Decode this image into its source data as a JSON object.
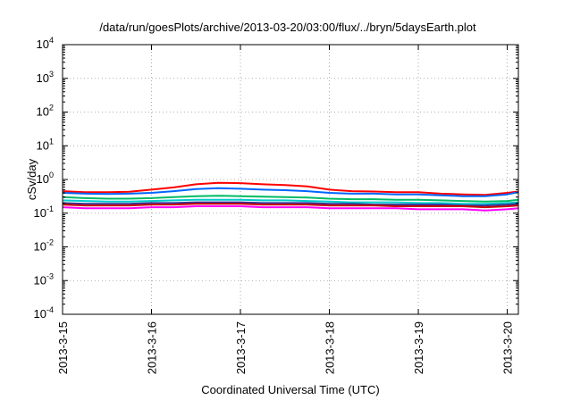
{
  "chart_data": {
    "type": "line",
    "title": "/data/run/goesPlots/archive/2013-03-20/03:00/flux/../bryn/5daysEarth.plot",
    "xlabel": "Coordinated Universal Time (UTC)",
    "ylabel": "cSv/day",
    "yscale": "log",
    "ylim": [
      0.0001,
      10000
    ],
    "xlim": [
      "2013-03-15 00:00",
      "2013-03-20 03:00"
    ],
    "grid": true,
    "yticks": [
      {
        "base": "10",
        "exp": "-4",
        "value": 0.0001
      },
      {
        "base": "10",
        "exp": "-3",
        "value": 0.001
      },
      {
        "base": "10",
        "exp": "-2",
        "value": 0.01
      },
      {
        "base": "10",
        "exp": "-1",
        "value": 0.1
      },
      {
        "base": "10",
        "exp": "0",
        "value": 1
      },
      {
        "base": "10",
        "exp": "1",
        "value": 10
      },
      {
        "base": "10",
        "exp": "2",
        "value": 100
      },
      {
        "base": "10",
        "exp": "3",
        "value": 1000
      },
      {
        "base": "10",
        "exp": "4",
        "value": 10000
      }
    ],
    "xticks": [
      {
        "label": "2013-3-15",
        "value": "2013-03-15 00:00"
      },
      {
        "label": "2013-3-16",
        "value": "2013-03-16 00:00"
      },
      {
        "label": "2013-3-17",
        "value": "2013-03-17 00:00"
      },
      {
        "label": "2013-3-18",
        "value": "2013-03-18 00:00"
      },
      {
        "label": "2013-3-19",
        "value": "2013-03-19 00:00"
      },
      {
        "label": "2013-3-20",
        "value": "2013-03-20 00:00"
      }
    ],
    "x": [
      "2013-03-15 00:00",
      "2013-03-15 06:00",
      "2013-03-15 12:00",
      "2013-03-15 18:00",
      "2013-03-16 00:00",
      "2013-03-16 06:00",
      "2013-03-16 12:00",
      "2013-03-16 18:00",
      "2013-03-17 00:00",
      "2013-03-17 06:00",
      "2013-03-17 12:00",
      "2013-03-17 18:00",
      "2013-03-18 00:00",
      "2013-03-18 06:00",
      "2013-03-18 12:00",
      "2013-03-18 18:00",
      "2013-03-19 00:00",
      "2013-03-19 06:00",
      "2013-03-19 12:00",
      "2013-03-19 18:00",
      "2013-03-20 00:00",
      "2013-03-20 03:00"
    ],
    "series": [
      {
        "color": "#ff0000",
        "values": [
          0.45,
          0.42,
          0.42,
          0.43,
          0.5,
          0.58,
          0.72,
          0.8,
          0.78,
          0.72,
          0.68,
          0.62,
          0.5,
          0.45,
          0.44,
          0.42,
          0.42,
          0.38,
          0.36,
          0.35,
          0.4,
          0.44
        ]
      },
      {
        "color": "#0066ff",
        "values": [
          0.4,
          0.38,
          0.37,
          0.38,
          0.4,
          0.45,
          0.52,
          0.55,
          0.53,
          0.5,
          0.48,
          0.45,
          0.4,
          0.38,
          0.38,
          0.36,
          0.36,
          0.34,
          0.32,
          0.32,
          0.36,
          0.42
        ]
      },
      {
        "color": "#00bb66",
        "values": [
          0.3,
          0.28,
          0.27,
          0.27,
          0.28,
          0.3,
          0.32,
          0.33,
          0.32,
          0.31,
          0.3,
          0.29,
          0.27,
          0.26,
          0.26,
          0.25,
          0.25,
          0.24,
          0.23,
          0.22,
          0.23,
          0.25
        ]
      },
      {
        "color": "#00cccc",
        "values": [
          0.24,
          0.23,
          0.22,
          0.22,
          0.23,
          0.24,
          0.25,
          0.25,
          0.25,
          0.24,
          0.24,
          0.23,
          0.22,
          0.21,
          0.21,
          0.21,
          0.2,
          0.2,
          0.19,
          0.19,
          0.2,
          0.21
        ]
      },
      {
        "color": "#333399",
        "values": [
          0.2,
          0.19,
          0.19,
          0.19,
          0.2,
          0.2,
          0.21,
          0.21,
          0.21,
          0.2,
          0.2,
          0.2,
          0.19,
          0.19,
          0.18,
          0.18,
          0.18,
          0.18,
          0.17,
          0.17,
          0.18,
          0.19
        ]
      },
      {
        "color": "#cc0000",
        "values": [
          0.18,
          0.17,
          0.17,
          0.17,
          0.18,
          0.18,
          0.19,
          0.19,
          0.19,
          0.18,
          0.18,
          0.18,
          0.17,
          0.17,
          0.17,
          0.16,
          0.16,
          0.16,
          0.16,
          0.15,
          0.16,
          0.17
        ]
      },
      {
        "color": "#ff00ff",
        "values": [
          0.15,
          0.14,
          0.14,
          0.14,
          0.15,
          0.15,
          0.16,
          0.16,
          0.16,
          0.15,
          0.15,
          0.15,
          0.14,
          0.14,
          0.14,
          0.14,
          0.13,
          0.13,
          0.13,
          0.12,
          0.13,
          0.14
        ]
      }
    ]
  }
}
